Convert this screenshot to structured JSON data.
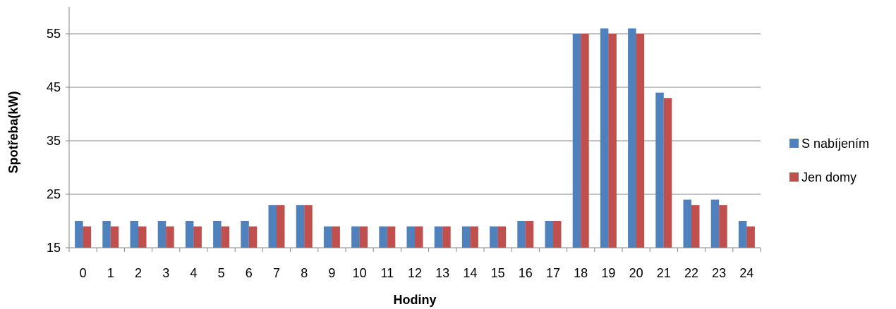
{
  "chart_data": {
    "type": "bar",
    "title": "",
    "xlabel": "Hodiny",
    "ylabel": "Spotřeba(kW)",
    "categories": [
      "0",
      "1",
      "2",
      "3",
      "4",
      "5",
      "6",
      "7",
      "8",
      "9",
      "10",
      "11",
      "12",
      "13",
      "14",
      "15",
      "16",
      "17",
      "18",
      "19",
      "20",
      "21",
      "22",
      "23",
      "24"
    ],
    "series": [
      {
        "name": "S nabíjením",
        "color": "#4F81BD",
        "values": [
          20,
          20,
          20,
          20,
          20,
          20,
          20,
          23,
          23,
          19,
          19,
          19,
          19,
          19,
          19,
          19,
          20,
          20,
          55,
          56,
          56,
          44,
          24,
          24,
          20
        ]
      },
      {
        "name": "Jen domy",
        "color": "#C0504D",
        "values": [
          19,
          19,
          19,
          19,
          19,
          19,
          19,
          23,
          23,
          19,
          19,
          19,
          19,
          19,
          19,
          19,
          20,
          20,
          55,
          55,
          55,
          43,
          23,
          23,
          19
        ]
      }
    ],
    "ylim": [
      15,
      60
    ],
    "yticks": [
      15,
      25,
      35,
      45,
      55
    ],
    "grid": true,
    "legend_position": "right"
  }
}
